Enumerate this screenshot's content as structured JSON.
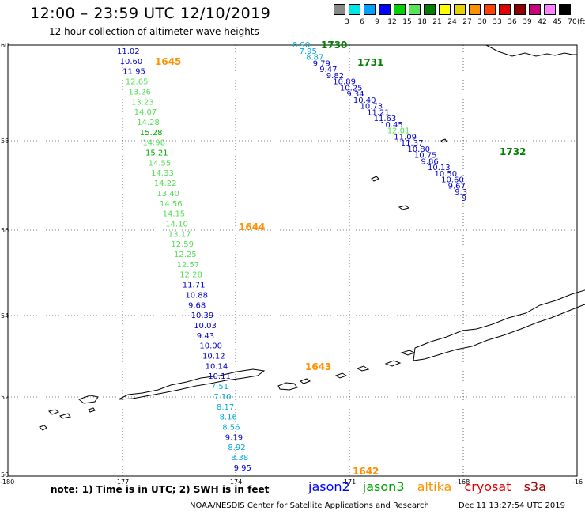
{
  "header": {
    "title": "12:00 – 23:59 UTC 12/10/2019",
    "subtitle": "12 hour collection of altimeter wave heights"
  },
  "legend": {
    "labels": [
      "3",
      "6",
      "9",
      "12",
      "15",
      "18",
      "21",
      "24",
      "27",
      "30",
      "33",
      "36",
      "39",
      "42",
      "45",
      "70"
    ],
    "unit": "(ft)",
    "colors": [
      "#888888",
      "#00e5e5",
      "#00a0ff",
      "#0000ff",
      "#00d000",
      "#56e556",
      "#008000",
      "#ffff00",
      "#e5d000",
      "#ff9000",
      "#ff4000",
      "#e00000",
      "#900000",
      "#c80080",
      "#ff80ff",
      "#000000"
    ]
  },
  "map": {
    "lon_labels": [
      "-180",
      "-177",
      "-174",
      "-171",
      "-168",
      "-16"
    ],
    "lat_labels": [
      "60",
      "58",
      "56",
      "54",
      "52",
      "50"
    ]
  },
  "tracks": [
    {
      "points": [
        {
          "v": "11.02",
          "c": "#0000cc"
        },
        {
          "v": "10.60",
          "c": "#0000cc"
        },
        {
          "v": "11.95",
          "c": "#0000cc"
        },
        {
          "v": "12.65",
          "c": "#55dd55"
        },
        {
          "v": "13.26",
          "c": "#55dd55"
        },
        {
          "v": "13.23",
          "c": "#55dd55"
        },
        {
          "v": "14.07",
          "c": "#55dd55"
        },
        {
          "v": "14.28",
          "c": "#55dd55"
        },
        {
          "v": "15.28",
          "c": "#00aa00"
        },
        {
          "v": "14.98",
          "c": "#55dd55"
        },
        {
          "v": "15.21",
          "c": "#00aa00"
        },
        {
          "v": "14.55",
          "c": "#55dd55"
        },
        {
          "v": "14.33",
          "c": "#55dd55"
        },
        {
          "v": "14.22",
          "c": "#55dd55"
        },
        {
          "v": "13.40",
          "c": "#55dd55"
        },
        {
          "v": "14.56",
          "c": "#55dd55"
        },
        {
          "v": "14.15",
          "c": "#55dd55"
        },
        {
          "v": "14.10",
          "c": "#55dd55"
        },
        {
          "v": "13.17",
          "c": "#55dd55"
        },
        {
          "v": "12.59",
          "c": "#55dd55"
        },
        {
          "v": "12.25",
          "c": "#55dd55"
        },
        {
          "v": "12.57",
          "c": "#55dd55"
        },
        {
          "v": "12.28",
          "c": "#55dd55"
        },
        {
          "v": "11.71",
          "c": "#0000cc"
        },
        {
          "v": "10.88",
          "c": "#0000cc"
        },
        {
          "v": "9.68",
          "c": "#0000cc"
        },
        {
          "v": "10.39",
          "c": "#0000cc"
        },
        {
          "v": "10.03",
          "c": "#0000cc"
        },
        {
          "v": "9.43",
          "c": "#0000cc"
        },
        {
          "v": "10.00",
          "c": "#0000cc"
        },
        {
          "v": "10.12",
          "c": "#0000cc"
        },
        {
          "v": "10.14",
          "c": "#0000cc"
        },
        {
          "v": "10.11",
          "c": "#0000cc"
        },
        {
          "v": "7.51",
          "c": "#00aadd"
        },
        {
          "v": "7.10",
          "c": "#00aadd"
        },
        {
          "v": "8.17",
          "c": "#00aadd"
        },
        {
          "v": "8.16",
          "c": "#00aadd"
        },
        {
          "v": "8.56",
          "c": "#00aadd"
        },
        {
          "v": "9.19",
          "c": "#0000cc"
        },
        {
          "v": "8.92",
          "c": "#00aadd"
        },
        {
          "v": "8.38",
          "c": "#00aadd"
        },
        {
          "v": "9.95",
          "c": "#0000cc"
        }
      ],
      "time_labels": [
        {
          "t": "1645",
          "c": "#ff9000"
        },
        {
          "t": "1644",
          "c": "#ff9000"
        },
        {
          "t": "1643",
          "c": "#ff9000"
        },
        {
          "t": "1642",
          "c": "#ff9000"
        }
      ]
    },
    {
      "points": [
        {
          "v": "8.90",
          "c": "#00aadd"
        },
        {
          "v": "7.95",
          "c": "#00aadd"
        },
        {
          "v": "8.87",
          "c": "#00aadd"
        },
        {
          "v": "9.79",
          "c": "#0000cc"
        },
        {
          "v": "9.47",
          "c": "#0000cc"
        },
        {
          "v": "9.82",
          "c": "#0000cc"
        },
        {
          "v": "10.89",
          "c": "#0000cc"
        },
        {
          "v": "10.25",
          "c": "#0000cc"
        },
        {
          "v": "9.34",
          "c": "#0000cc"
        },
        {
          "v": "10.40",
          "c": "#0000cc"
        },
        {
          "v": "10.73",
          "c": "#0000cc"
        },
        {
          "v": "11.21",
          "c": "#0000cc"
        },
        {
          "v": "11.63",
          "c": "#0000cc"
        },
        {
          "v": "10.45",
          "c": "#0000cc"
        },
        {
          "v": "12.01",
          "c": "#55dd55"
        },
        {
          "v": "11.09",
          "c": "#0000cc"
        },
        {
          "v": "11.37",
          "c": "#0000cc"
        },
        {
          "v": "10.80",
          "c": "#0000cc"
        },
        {
          "v": "10.75",
          "c": "#0000cc"
        },
        {
          "v": "9.86",
          "c": "#0000cc"
        },
        {
          "v": "10.13",
          "c": "#0000cc"
        },
        {
          "v": "10.50",
          "c": "#0000cc"
        },
        {
          "v": "10.60",
          "c": "#0000cc"
        },
        {
          "v": "9.67",
          "c": "#0000cc"
        },
        {
          "v": "9.3",
          "c": "#0000cc"
        },
        {
          "v": "9",
          "c": "#0000cc"
        }
      ],
      "time_labels": [
        {
          "t": "1730",
          "c": "#008000"
        },
        {
          "t": "1731",
          "c": "#008000"
        },
        {
          "t": "1732",
          "c": "#008000"
        }
      ]
    }
  ],
  "footer": {
    "note": "note: 1) Time is in UTC; 2) SWH is in feet",
    "satellites": [
      {
        "name": "jason2",
        "color": "#0000ff"
      },
      {
        "name": "jason3",
        "color": "#00a000"
      },
      {
        "name": "altika",
        "color": "#ff9000"
      },
      {
        "name": "cryosat",
        "color": "#e00000"
      },
      {
        "name": "s3a",
        "color": "#a00000"
      }
    ],
    "credit": "NOAA/NESDIS Center for Satellite Applications and Research",
    "timestamp": "Dec 11 13:27:54 UTC 2019"
  }
}
